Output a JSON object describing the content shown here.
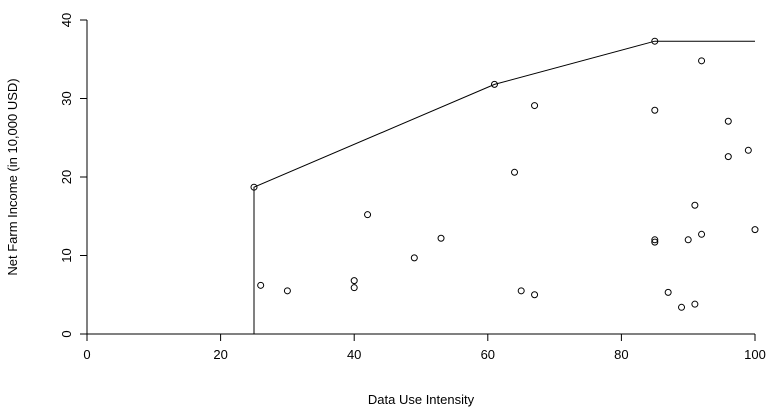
{
  "chart_data": {
    "type": "scatter",
    "xlabel": "Data Use Intensity",
    "ylabel": "Net Farm Income (in 10,000 USD)",
    "xlim": [
      0,
      100
    ],
    "ylim": [
      0,
      40
    ],
    "x_ticks": [
      0,
      20,
      40,
      60,
      80,
      100
    ],
    "y_ticks": [
      0,
      10,
      20,
      30,
      40
    ],
    "grid": false,
    "points": [
      {
        "x": 25,
        "y": 18.7
      },
      {
        "x": 26,
        "y": 6.2
      },
      {
        "x": 30,
        "y": 5.5
      },
      {
        "x": 40,
        "y": 6.8
      },
      {
        "x": 40,
        "y": 5.9
      },
      {
        "x": 42,
        "y": 15.2
      },
      {
        "x": 49,
        "y": 9.7
      },
      {
        "x": 53,
        "y": 12.2
      },
      {
        "x": 61,
        "y": 31.8
      },
      {
        "x": 64,
        "y": 20.6
      },
      {
        "x": 65,
        "y": 5.5
      },
      {
        "x": 67,
        "y": 29.1
      },
      {
        "x": 67,
        "y": 5.0
      },
      {
        "x": 85,
        "y": 37.3
      },
      {
        "x": 85,
        "y": 28.5
      },
      {
        "x": 85,
        "y": 12.0
      },
      {
        "x": 85,
        "y": 11.7
      },
      {
        "x": 87,
        "y": 5.3
      },
      {
        "x": 89,
        "y": 3.4
      },
      {
        "x": 90,
        "y": 12.0
      },
      {
        "x": 91,
        "y": 16.4
      },
      {
        "x": 91,
        "y": 3.8
      },
      {
        "x": 92,
        "y": 34.8
      },
      {
        "x": 92,
        "y": 12.7
      },
      {
        "x": 96,
        "y": 27.1
      },
      {
        "x": 96,
        "y": 22.6
      },
      {
        "x": 99,
        "y": 23.4
      },
      {
        "x": 100,
        "y": 13.3
      }
    ],
    "frontier": [
      {
        "x": 0,
        "y": 0
      },
      {
        "x": 25,
        "y": 0
      },
      {
        "x": 25,
        "y": 18.7
      },
      {
        "x": 61,
        "y": 31.8
      },
      {
        "x": 85,
        "y": 37.3
      },
      {
        "x": 100,
        "y": 37.3
      }
    ]
  }
}
